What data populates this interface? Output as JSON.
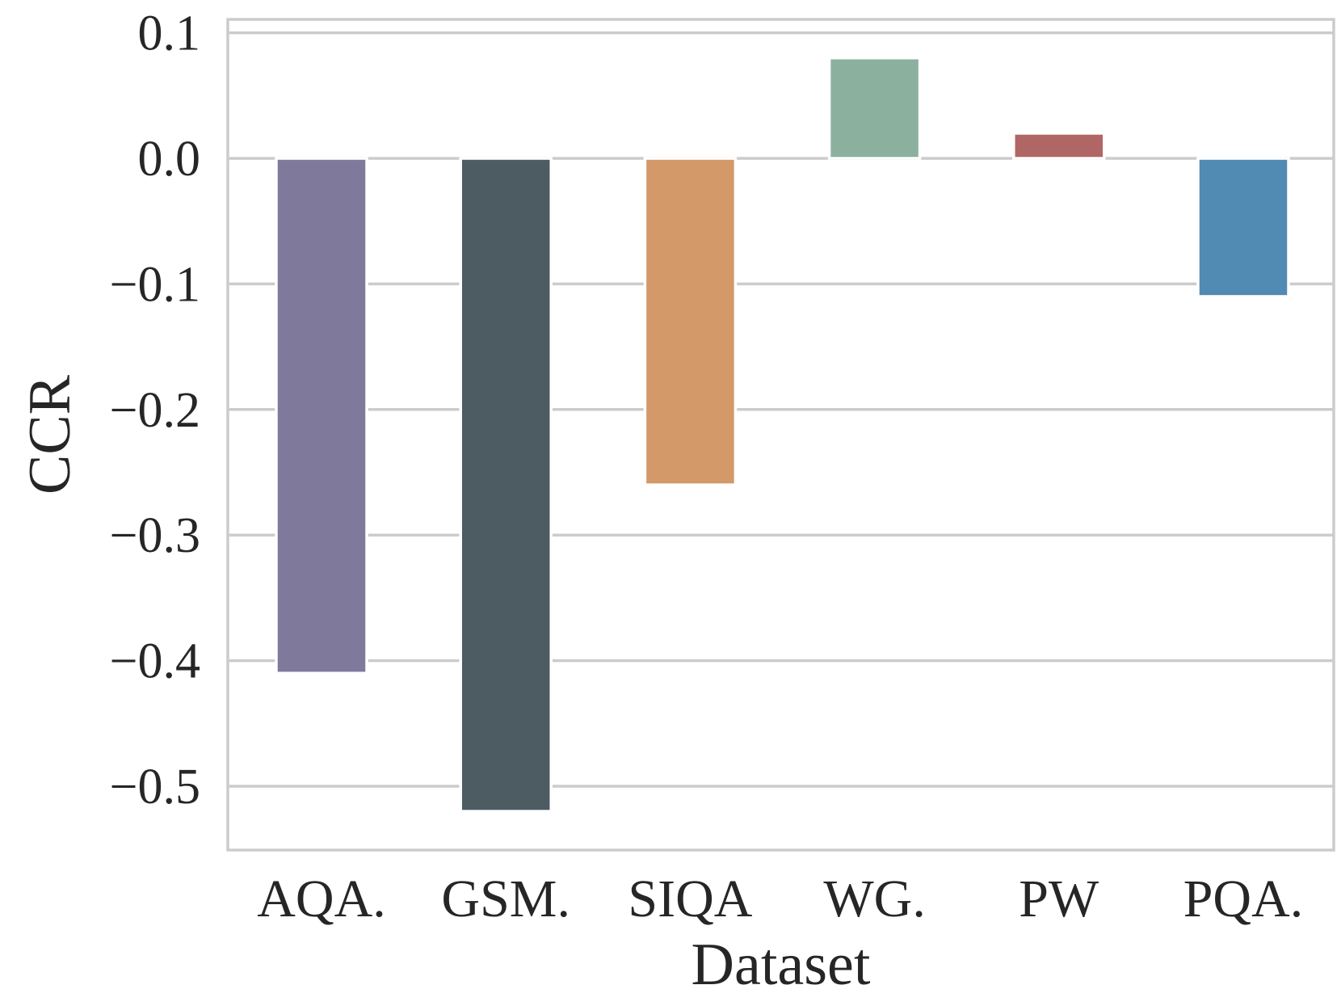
{
  "chart_data": {
    "type": "bar",
    "title": "",
    "xlabel": "Dataset",
    "ylabel": "CCR",
    "categories": [
      "AQA.",
      "GSM.",
      "SIQA",
      "WG.",
      "PW",
      "PQA."
    ],
    "values": [
      -0.41,
      -0.52,
      -0.26,
      0.08,
      0.02,
      -0.11
    ],
    "colors": [
      "#7f7a9b",
      "#4d5b63",
      "#d39968",
      "#8cb09e",
      "#b06665",
      "#518ab3"
    ],
    "ylim": [
      -0.55,
      0.11
    ],
    "yticks": [
      0.1,
      0.0,
      -0.1,
      -0.2,
      -0.3,
      -0.4,
      -0.5
    ],
    "ytick_labels": [
      "0.1",
      "0.0",
      "−0.1",
      "−0.2",
      "−0.3",
      "−0.4",
      "−0.5"
    ],
    "grid": true,
    "grid_color": "#cccccc",
    "frame_color": "#cccccc",
    "text_color": "#262626"
  }
}
